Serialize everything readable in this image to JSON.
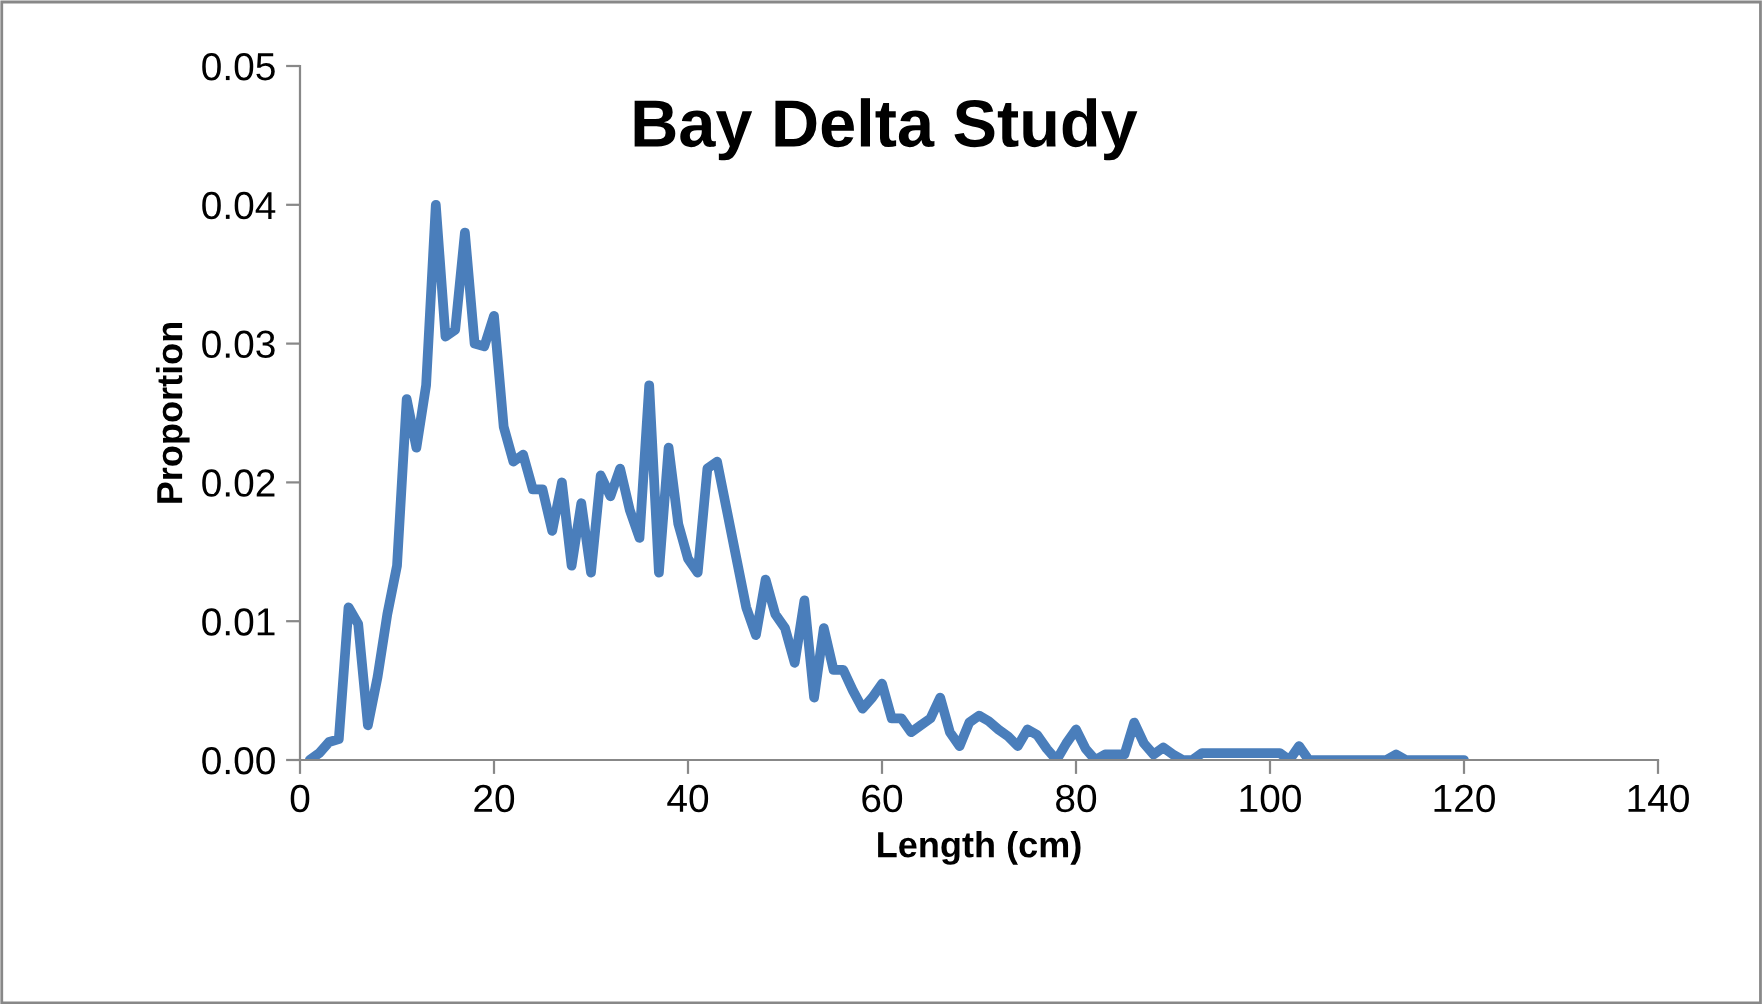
{
  "chart_data": {
    "type": "line",
    "title": "Bay Delta Study",
    "xlabel": "Length (cm)",
    "ylabel": "Proportion",
    "x": [
      1,
      2,
      3,
      4,
      5,
      6,
      7,
      8,
      9,
      10,
      11,
      12,
      13,
      14,
      15,
      16,
      17,
      18,
      19,
      20,
      21,
      22,
      23,
      24,
      25,
      26,
      27,
      28,
      29,
      30,
      31,
      32,
      33,
      34,
      35,
      36,
      37,
      38,
      39,
      40,
      41,
      42,
      43,
      44,
      45,
      46,
      47,
      48,
      49,
      50,
      51,
      52,
      53,
      54,
      55,
      56,
      57,
      58,
      59,
      60,
      61,
      62,
      63,
      64,
      65,
      66,
      67,
      68,
      69,
      70,
      71,
      72,
      73,
      74,
      75,
      76,
      77,
      78,
      79,
      80,
      81,
      82,
      83,
      84,
      85,
      86,
      87,
      88,
      89,
      90,
      91,
      92,
      93,
      94,
      95,
      96,
      97,
      98,
      99,
      100,
      101,
      102,
      103,
      104,
      105,
      106,
      107,
      108,
      109,
      110,
      111,
      112,
      113,
      114,
      115,
      116,
      117,
      118,
      119,
      120
    ],
    "series": [
      {
        "color": "#4a7ebb",
        "values": [
          0.0,
          0.0005,
          0.0013,
          0.0015,
          0.011,
          0.0098,
          0.0025,
          0.006,
          0.0105,
          0.014,
          0.026,
          0.0225,
          0.027,
          0.04,
          0.0305,
          0.031,
          0.038,
          0.03,
          0.0298,
          0.032,
          0.024,
          0.0215,
          0.022,
          0.0195,
          0.0195,
          0.0165,
          0.02,
          0.014,
          0.0185,
          0.0135,
          0.0205,
          0.019,
          0.021,
          0.018,
          0.016,
          0.027,
          0.0135,
          0.0225,
          0.017,
          0.0145,
          0.0135,
          0.021,
          0.0215,
          0.018,
          0.0145,
          0.011,
          0.009,
          0.013,
          0.0105,
          0.0095,
          0.007,
          0.0115,
          0.0045,
          0.0095,
          0.0065,
          0.0065,
          0.005,
          0.0037,
          0.0045,
          0.0055,
          0.003,
          0.003,
          0.002,
          0.0025,
          0.003,
          0.0045,
          0.002,
          0.001,
          0.0027,
          0.0032,
          0.0028,
          0.0022,
          0.0017,
          0.001,
          0.0022,
          0.0018,
          0.0008,
          0.0,
          0.0012,
          0.0022,
          0.0008,
          0.0,
          0.0004,
          0.0004,
          0.0004,
          0.0027,
          0.0012,
          0.0004,
          0.0009,
          0.0004,
          0.0,
          0.0,
          0.0005,
          0.0005,
          0.0005,
          0.0005,
          0.0005,
          0.0005,
          0.0005,
          0.0005,
          0.0005,
          0.0,
          0.001,
          0.0,
          0.0,
          0.0,
          0.0,
          0.0,
          0.0,
          0.0,
          0.0,
          0.0,
          0.0004,
          0.0,
          0.0,
          0.0,
          0.0,
          0.0,
          0.0,
          0.0
        ]
      }
    ],
    "xlim": [
      0,
      140
    ],
    "xticks": [
      0,
      20,
      40,
      60,
      80,
      100,
      120,
      140
    ],
    "ylim": [
      0,
      0.05
    ],
    "yticks": [
      {
        "value": 0,
        "label": "0.00"
      },
      {
        "value": 0.01,
        "label": "0.01"
      },
      {
        "value": 0.02,
        "label": "0.02"
      },
      {
        "value": 0.03,
        "label": "0.03"
      },
      {
        "value": 0.04,
        "label": "0.04"
      },
      {
        "value": 0.05,
        "label": "0.05"
      }
    ],
    "grid": false,
    "marker": "none",
    "line_style": "solid"
  }
}
